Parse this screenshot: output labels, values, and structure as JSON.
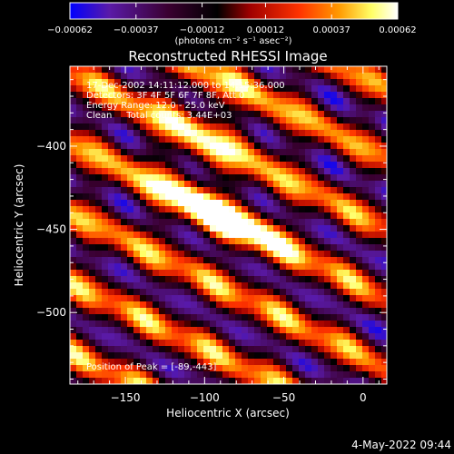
{
  "chart_data": {
    "type": "heatmap",
    "title": "Reconstructed RHESSI Image",
    "xlabel": "Heliocentric X (arcsec)",
    "ylabel": "Heliocentric Y (arcsec)",
    "xlim": [
      -185,
      15
    ],
    "ylim": [
      -543,
      -352
    ],
    "x_ticks": [
      -150,
      -100,
      -50,
      0
    ],
    "x_tick_labels": [
      "−150",
      "−100",
      "−50",
      "0"
    ],
    "y_ticks": [
      -400,
      -450,
      -500
    ],
    "y_tick_labels": [
      "−400",
      "−450",
      "−500"
    ],
    "colorbar": {
      "range": [
        -0.00062,
        0.00062
      ],
      "ticks": [
        -0.00062,
        -0.00037,
        -0.00012,
        0.00012,
        0.00037,
        0.00062
      ],
      "tick_labels": [
        "−0.00062",
        "−0.00037",
        "−0.00012",
        "0.00012",
        "0.00037",
        "0.00062"
      ],
      "unit_label": "(photons cm⁻² s⁻¹ asec⁻²)",
      "colormap": [
        "#0000ff",
        "#5a1aa8",
        "#3a0030",
        "#000000",
        "#a00000",
        "#ff3300",
        "#ff9900",
        "#ffff66",
        "#ffffff"
      ]
    },
    "annotations": [
      "17-Dec-2002 14:11:12.000 to 14:15:36.000",
      "Detectors: 3F 4F 5F 6F 7F 8F, Att 0",
      "Energy Range: 12.0 - 25.0 keV",
      "Clean     Total counts: 3.44E+03"
    ],
    "peak_label": "Position of Peak = [-89,-443]",
    "peak": {
      "x": -89,
      "y": -443
    },
    "band_direction_deg": -25
  },
  "footer": {
    "timestamp": "4-May-2022 09:44"
  }
}
